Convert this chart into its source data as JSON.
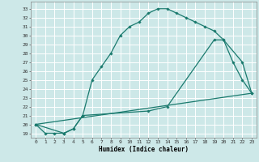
{
  "xlabel": "Humidex (Indice chaleur)",
  "bg_color": "#cde8e8",
  "grid_color": "#ffffff",
  "line_color": "#1a7a6e",
  "xlim": [
    -0.5,
    23.5
  ],
  "ylim": [
    18.5,
    33.8
  ],
  "xticks": [
    0,
    1,
    2,
    3,
    4,
    5,
    6,
    7,
    8,
    9,
    10,
    11,
    12,
    13,
    14,
    15,
    16,
    17,
    18,
    19,
    20,
    21,
    22,
    23
  ],
  "yticks": [
    19,
    20,
    21,
    22,
    23,
    24,
    25,
    26,
    27,
    28,
    29,
    30,
    31,
    32,
    33
  ],
  "series1_x": [
    0,
    1,
    2,
    3,
    4,
    5,
    6,
    7,
    8,
    9,
    10,
    11,
    12,
    13,
    14,
    15,
    16,
    17,
    18,
    19,
    20,
    21,
    22,
    23
  ],
  "series1_y": [
    20,
    19,
    19,
    19,
    19.5,
    21,
    25,
    26.5,
    28,
    30,
    31,
    31.5,
    32.5,
    33,
    33,
    32.5,
    32,
    31.5,
    31,
    30.5,
    29.5,
    27,
    25,
    23.5
  ],
  "series2_x": [
    0,
    3,
    4,
    5,
    12,
    14,
    19,
    20,
    22,
    23
  ],
  "series2_y": [
    20,
    19,
    19.5,
    21,
    21.5,
    22,
    29.5,
    29.5,
    27,
    23.5
  ],
  "series3_x": [
    0,
    23
  ],
  "series3_y": [
    20.0,
    23.5
  ]
}
